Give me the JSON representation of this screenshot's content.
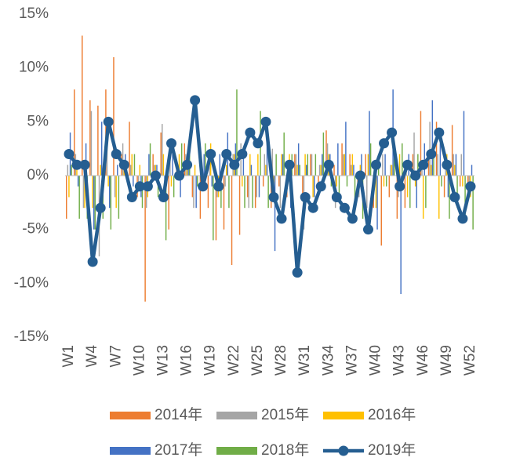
{
  "chart_data": {
    "type": "bar-line",
    "categories": [
      "W1",
      null,
      null,
      "W4",
      null,
      null,
      "W7",
      null,
      null,
      "W10",
      null,
      null,
      "W13",
      null,
      null,
      "W16",
      null,
      null,
      "W19",
      null,
      null,
      "W22",
      null,
      null,
      "W25",
      null,
      null,
      "W28",
      null,
      null,
      "W31",
      null,
      null,
      "W34",
      null,
      null,
      "W37",
      null,
      null,
      "W40",
      null,
      null,
      "W43",
      null,
      null,
      "W46",
      null,
      null,
      "W49",
      null,
      null,
      "W52"
    ],
    "ylim": [
      -15,
      15
    ],
    "yticks": [
      {
        "value": 15,
        "label": "15%"
      },
      {
        "value": 10,
        "label": "10%"
      },
      {
        "value": 5,
        "label": "5%"
      },
      {
        "value": 0,
        "label": "0%"
      },
      {
        "value": -5,
        "label": "-5%"
      },
      {
        "value": -10,
        "label": "-10%"
      },
      {
        "value": -15,
        "label": "-15%"
      }
    ],
    "grid": false,
    "series": [
      {
        "name": "2014年",
        "type": "bar",
        "color": "#ed7d31",
        "values": [
          -4,
          8,
          13,
          7,
          6.5,
          8,
          11,
          2,
          5,
          -2,
          -11.7,
          2,
          4,
          -5,
          1,
          3,
          -2,
          -4,
          -3,
          -6,
          -5,
          -8.3,
          -5.5,
          -2,
          -3,
          -1,
          -3,
          -1,
          -2,
          2,
          -2,
          2,
          -1,
          4.2,
          1,
          3,
          2,
          -2,
          2,
          -3,
          -6.5,
          -2,
          -4,
          -3,
          2,
          6,
          2,
          5,
          -2,
          4.7,
          -1,
          -2
        ]
      },
      {
        "name": "2015年",
        "type": "bar",
        "color": "#a5a5a5",
        "values": [
          1,
          2,
          -3,
          6,
          -7.5,
          4,
          -2,
          3,
          1,
          -1.5,
          -3,
          1,
          4.8,
          2,
          1,
          2,
          -3,
          1,
          2,
          -2,
          -1,
          2,
          3,
          -3,
          -2,
          2,
          2.5,
          -3,
          1,
          2,
          -5,
          2,
          1,
          3,
          -3,
          2,
          1,
          -2,
          -3,
          1,
          2,
          1,
          -2,
          1,
          4,
          1,
          5,
          2,
          1,
          2,
          2,
          -1
        ]
      },
      {
        "name": "2016年",
        "type": "bar",
        "color": "#ffc000",
        "values": [
          -2,
          1,
          -3,
          -3,
          1,
          -1,
          -3,
          1,
          2,
          1,
          -2,
          1,
          2,
          -1,
          2,
          1,
          1,
          -1,
          3,
          -2,
          1,
          2,
          -1,
          2,
          2,
          1,
          -2,
          2,
          2,
          1,
          2,
          -2,
          1,
          2,
          -1,
          2,
          2,
          1,
          2,
          -3,
          -1,
          1,
          2,
          -2,
          -1,
          -4,
          1,
          -4,
          2,
          1,
          -1,
          -2
        ]
      },
      {
        "name": "2017年",
        "type": "bar",
        "color": "#4472c4",
        "values": [
          4,
          -1,
          3,
          -5,
          5,
          -3,
          1,
          2,
          -1,
          -2,
          2,
          1,
          -1,
          3,
          -2,
          2,
          -3,
          2,
          -1,
          2,
          4,
          3,
          2,
          1,
          -2,
          3,
          -7,
          2,
          -3,
          3,
          1,
          -2,
          2,
          2,
          3,
          5,
          1,
          2,
          6,
          -5,
          2,
          8,
          -11,
          2,
          -3,
          3,
          7,
          3,
          -2,
          2,
          6,
          1
        ]
      },
      {
        "name": "2018年",
        "type": "bar",
        "color": "#70ad47",
        "values": [
          1,
          -4,
          -4,
          -5,
          -4,
          -5,
          -4,
          1,
          2,
          -3,
          3,
          -2,
          -6,
          -2,
          3,
          3,
          -1,
          3,
          -6,
          -3,
          -3,
          8,
          -3,
          -3,
          6,
          -3,
          2,
          4,
          2,
          1,
          2,
          2,
          4,
          -1,
          -2,
          -1,
          -3,
          -4,
          3,
          2,
          -1,
          2,
          3,
          -3,
          2,
          -3,
          2,
          -1,
          -4,
          -3,
          -4,
          -5
        ]
      },
      {
        "name": "2019年",
        "type": "line",
        "color": "#255e91",
        "values": [
          2,
          1,
          1,
          -8,
          -3,
          5,
          2,
          1,
          -2,
          -1,
          -1,
          0,
          -2,
          3,
          0,
          1,
          7,
          -1,
          2,
          -1,
          2,
          1,
          2,
          4,
          3,
          5,
          -2,
          -4,
          1,
          -9,
          -2,
          -3,
          -1,
          1,
          -2,
          -3,
          -4,
          0,
          -5,
          1,
          3,
          4,
          -1,
          1,
          0,
          1,
          2,
          4,
          1,
          -2,
          -4,
          -1
        ]
      }
    ]
  }
}
